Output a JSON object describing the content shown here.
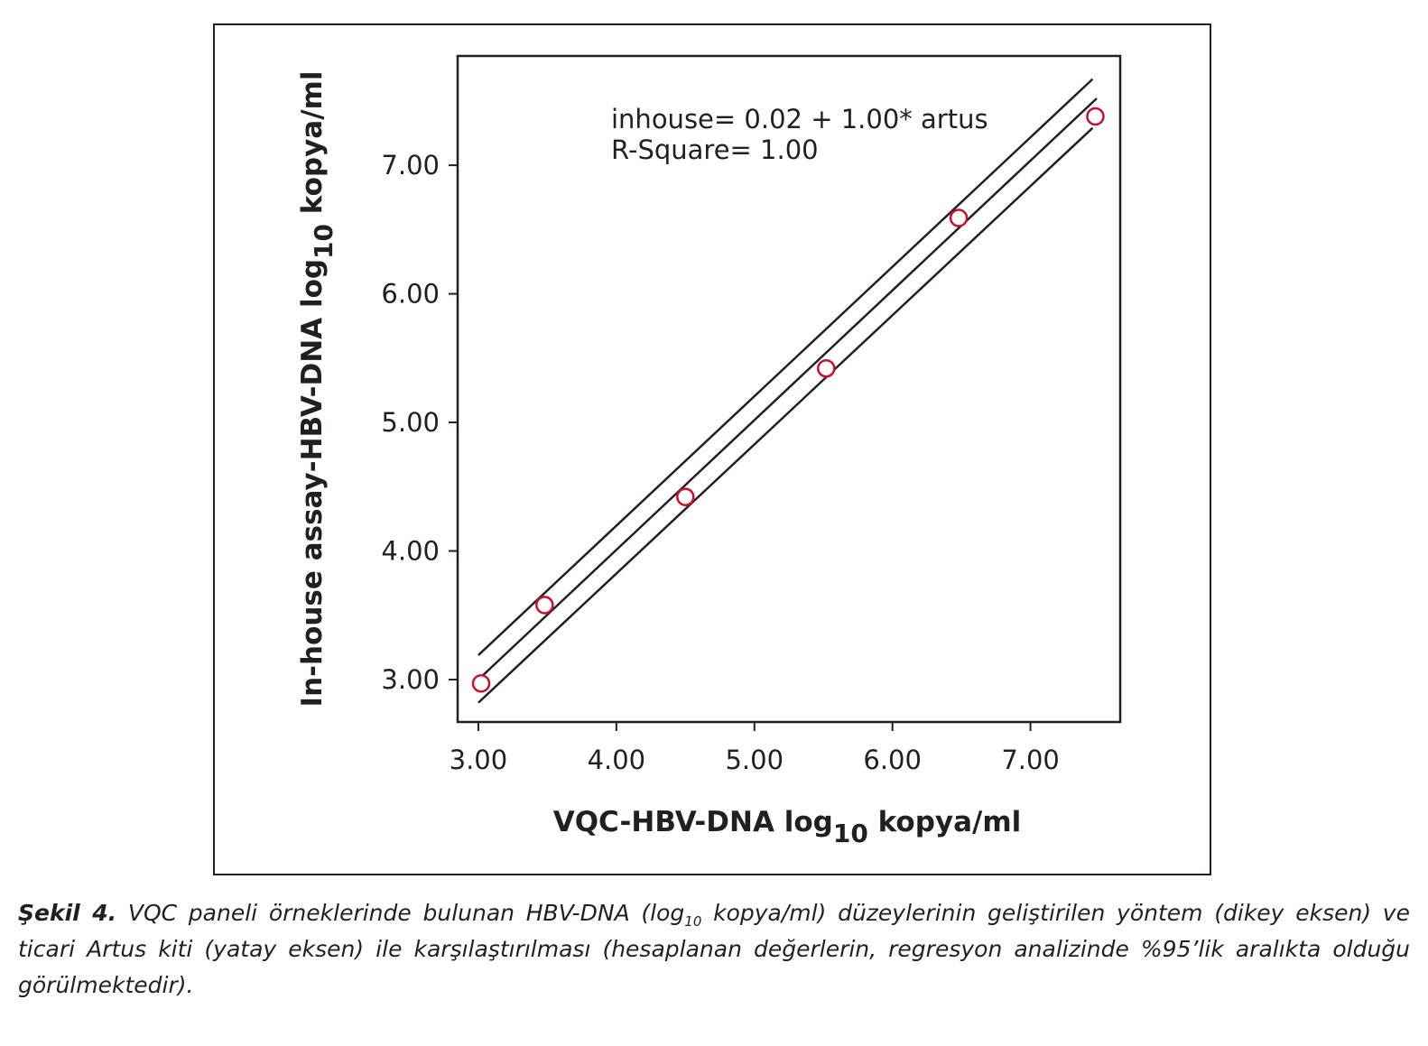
{
  "chart_data": {
    "type": "scatter",
    "xlabel": {
      "main": "VQC-HBV-DNA log",
      "sub": "10",
      "after": " kopya/ml"
    },
    "ylabel": {
      "main": "In-house assay-HBV-DNA log",
      "sub": "10",
      "after": " kopya/ml"
    },
    "xlim": [
      2.85,
      7.65
    ],
    "ylim": [
      2.67,
      7.85
    ],
    "x_ticks": [
      3,
      4,
      5,
      6,
      7
    ],
    "y_ticks": [
      3,
      4,
      5,
      6,
      7
    ],
    "x_tick_labels": [
      "3.00",
      "4.00",
      "5.00",
      "6.00",
      "7.00"
    ],
    "y_tick_labels": [
      "3.00",
      "4.00",
      "5.00",
      "6.00",
      "7.00"
    ],
    "points": [
      {
        "x": 3.02,
        "y": 2.97
      },
      {
        "x": 3.48,
        "y": 3.58
      },
      {
        "x": 4.5,
        "y": 4.42
      },
      {
        "x": 5.52,
        "y": 5.42
      },
      {
        "x": 6.48,
        "y": 6.59
      },
      {
        "x": 7.47,
        "y": 7.38
      }
    ],
    "lines": [
      {
        "role": "upper-95",
        "x": [
          3.0,
          7.45
        ],
        "y": [
          3.19,
          7.67
        ]
      },
      {
        "role": "fit",
        "x": [
          3.0,
          7.48
        ],
        "y": [
          3.0,
          7.52
        ]
      },
      {
        "role": "lower-95",
        "x": [
          3.0,
          7.45
        ],
        "y": [
          2.82,
          7.29
        ]
      }
    ],
    "annotations": [
      "inhouse= 0.02 + 1.00* artus",
      "R-Square= 1.00"
    ],
    "grid": false,
    "colors": {
      "marker": "#c8102e",
      "line": "#231f20"
    }
  },
  "caption": {
    "label": "Şekil 4.",
    "part1": " VQC paneli örneklerinde bulunan HBV-DNA (log",
    "sub": "10",
    "part2": " kopya/ml) düzeylerinin geliştirilen yöntem (dikey eksen) ve ticari Artus kiti (yatay eksen) ile karşılaştırılması (hesaplanan değerlerin, regresyon analizinde %95’lik aralıkta olduğu görülmektedir)."
  }
}
